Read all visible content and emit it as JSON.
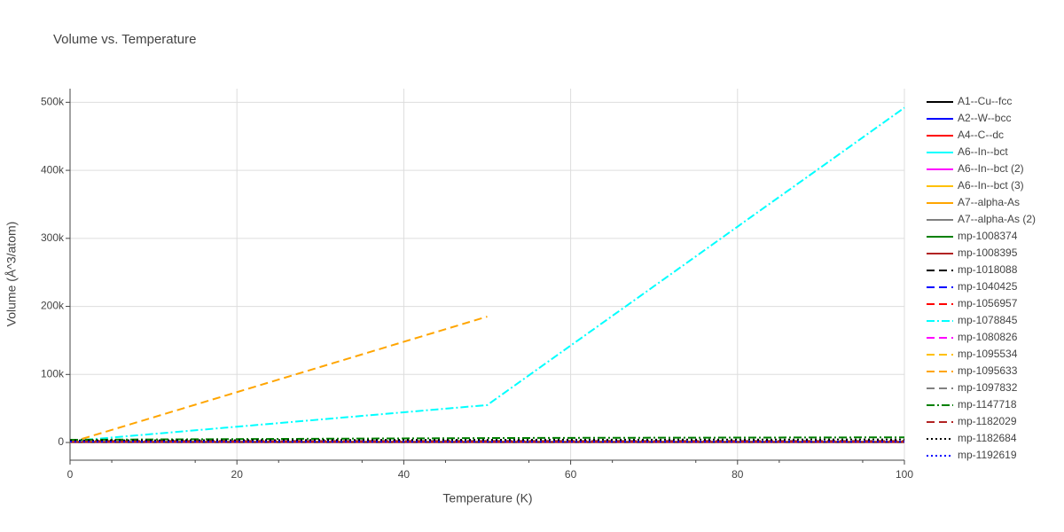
{
  "chart_data": {
    "type": "line",
    "title": "Volume vs. Temperature",
    "x_label": "Temperature (K)",
    "y_label": "Volume (Å^3/atom)",
    "x": [
      0,
      10,
      20,
      30,
      40,
      50,
      60,
      70,
      80,
      90,
      100
    ],
    "xlim": [
      0,
      100
    ],
    "xticks": [
      0,
      20,
      40,
      60,
      80,
      100
    ],
    "ylim": [
      -26000,
      520000
    ],
    "yticks": [
      {
        "value": 0,
        "label": "0"
      },
      {
        "value": 100000,
        "label": "100k"
      },
      {
        "value": 200000,
        "label": "200k"
      },
      {
        "value": 300000,
        "label": "300k"
      },
      {
        "value": 400000,
        "label": "400k"
      },
      {
        "value": 500000,
        "label": "500k"
      }
    ],
    "grid": true,
    "series": [
      {
        "name": "A1--Cu--fcc",
        "color": "#000000",
        "dash": "solid",
        "values": [
          12,
          12,
          12,
          12,
          12,
          12,
          12,
          12,
          12,
          12,
          12
        ]
      },
      {
        "name": "A2--W--bcc",
        "color": "#0000ff",
        "dash": "solid",
        "values": [
          16,
          16,
          16,
          16,
          16,
          16,
          16,
          16,
          16,
          16,
          16
        ]
      },
      {
        "name": "A4--C--dc",
        "color": "#ff0000",
        "dash": "solid",
        "values": [
          6,
          6,
          6,
          6,
          6,
          6,
          6,
          6,
          6,
          6,
          6
        ]
      },
      {
        "name": "A6--In--bct",
        "color": "#00ffff",
        "dash": "solid",
        "values": [
          27,
          27,
          27,
          27,
          27,
          27,
          27,
          27,
          27,
          27,
          27
        ]
      },
      {
        "name": "A6--In--bct (2)",
        "color": "#ff00ff",
        "dash": "solid",
        "values": [
          27,
          27,
          27,
          27,
          27,
          27,
          27,
          27,
          27,
          27,
          27
        ]
      },
      {
        "name": "A6--In--bct (3)",
        "color": "#ffc000",
        "dash": "solid",
        "values": [
          27,
          27,
          27,
          27,
          27,
          27,
          27,
          27,
          27,
          27,
          27
        ]
      },
      {
        "name": "A7--alpha-As",
        "color": "#ffa500",
        "dash": "solid",
        "values": [
          22,
          22,
          22,
          22,
          22,
          22,
          22,
          22,
          22,
          22,
          22
        ]
      },
      {
        "name": "A7--alpha-As (2)",
        "color": "#808080",
        "dash": "solid",
        "values": [
          22,
          22,
          22,
          22,
          22,
          22,
          22,
          22,
          22,
          22,
          22
        ]
      },
      {
        "name": "mp-1008374",
        "color": "#008000",
        "dash": "solid",
        "values": [
          1000,
          1000,
          1000,
          1000,
          1000,
          1000,
          1000,
          1000,
          1000,
          1000,
          1000
        ]
      },
      {
        "name": "mp-1008395",
        "color": "#b22222",
        "dash": "solid",
        "values": [
          800,
          800,
          800,
          800,
          800,
          800,
          800,
          800,
          800,
          800,
          800
        ]
      },
      {
        "name": "mp-1018088",
        "color": "#000000",
        "dash": "dash",
        "values": [
          2000,
          2000,
          2000,
          2000,
          2000,
          2000,
          2000,
          2000,
          2000,
          2000,
          2000
        ]
      },
      {
        "name": "mp-1040425",
        "color": "#0000ff",
        "dash": "dash",
        "values": [
          500,
          500,
          500,
          500,
          500,
          500,
          500,
          500,
          500,
          500,
          500
        ]
      },
      {
        "name": "mp-1056957",
        "color": "#ff0000",
        "dash": "dash",
        "values": [
          1500,
          1500,
          1500,
          1500,
          1500,
          1500,
          1500,
          1500,
          1500,
          1500,
          1500
        ]
      },
      {
        "name": "mp-1078845",
        "color": "#00ffff",
        "dash": "dashdot",
        "values": [
          2000,
          12600,
          23200,
          33800,
          44400,
          55000,
          142400,
          229800,
          317200,
          404600,
          492000
        ]
      },
      {
        "name": "mp-1080826",
        "color": "#ff00ff",
        "dash": "dash",
        "values": [
          300,
          300,
          300,
          300,
          300,
          300,
          300,
          300,
          300,
          300,
          300
        ]
      },
      {
        "name": "mp-1095534",
        "color": "#ffc000",
        "dash": "dash",
        "values": [
          400,
          400,
          400,
          400,
          400,
          400,
          400,
          400,
          400,
          400,
          400
        ]
      },
      {
        "name": "mp-1095633",
        "color": "#ffa500",
        "dash": "dash",
        "values": [
          0,
          37000,
          74000,
          111000,
          148000,
          185000,
          null,
          null,
          null,
          null,
          null
        ]
      },
      {
        "name": "mp-1097832",
        "color": "#808080",
        "dash": "dash",
        "values": [
          600,
          600,
          600,
          600,
          600,
          600,
          600,
          600,
          600,
          600,
          600
        ]
      },
      {
        "name": "mp-1147718",
        "color": "#008000",
        "dash": "dashdot",
        "values": [
          4000,
          4500,
          5000,
          5500,
          6000,
          6500,
          6800,
          7000,
          7200,
          7400,
          7600
        ]
      },
      {
        "name": "mp-1182029",
        "color": "#b22222",
        "dash": "dash",
        "values": [
          1000,
          1000,
          1000,
          1000,
          1000,
          1000,
          1000,
          1000,
          1000,
          1000,
          1000
        ]
      },
      {
        "name": "mp-1182684",
        "color": "#000000",
        "dash": "dot",
        "values": [
          3000,
          3200,
          3400,
          3600,
          3800,
          4000,
          4100,
          4200,
          4300,
          4400,
          4500
        ]
      },
      {
        "name": "mp-1192619",
        "color": "#0000ff",
        "dash": "dot",
        "values": [
          1200,
          1200,
          1200,
          1200,
          1200,
          1200,
          1200,
          1200,
          1200,
          1200,
          1200
        ]
      }
    ]
  }
}
